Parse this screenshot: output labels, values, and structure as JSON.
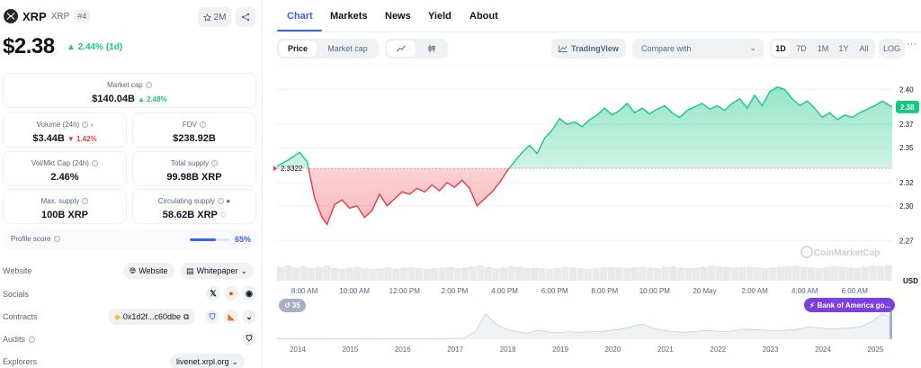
{
  "coin": {
    "name": "XRP",
    "symbol": "XRP",
    "rank": "#4",
    "watchlist_count": "2M",
    "price": "$2.38",
    "price_change": "2.44% (1d)"
  },
  "stats": {
    "market_cap": {
      "label": "Market cap",
      "value": "$140.04B",
      "change": "2.48%"
    },
    "volume": {
      "label": "Volume (24h)",
      "value": "$3.44B",
      "change": "1.42%"
    },
    "fdv": {
      "label": "FDV",
      "value": "$238.92B"
    },
    "vol_mkt_cap": {
      "label": "Vol/Mkt Cap (24h)",
      "value": "2.46%"
    },
    "total_supply": {
      "label": "Total supply",
      "value": "99.98B XRP"
    },
    "max_supply": {
      "label": "Max. supply",
      "value": "100B XRP"
    },
    "circulating_supply": {
      "label": "Circulating supply",
      "value": "58.62B XRP"
    }
  },
  "profile": {
    "label": "Profile score",
    "value": "65%",
    "fraction": 0.65
  },
  "links": {
    "website_label": "Website",
    "website_btn": "Website",
    "whitepaper_btn": "Whitepaper",
    "socials_label": "Socials",
    "contracts_label": "Contracts",
    "contract_address": "0x1d2f...c60dbe",
    "audits_label": "Audits",
    "explorers_label": "Explorers",
    "explorer_link": "livenet.xrpl.org"
  },
  "tabs": [
    "Chart",
    "Markets",
    "News",
    "Yield",
    "About"
  ],
  "chart_controls": {
    "price_btn": "Price",
    "market_cap_btn": "Market cap",
    "tradingview": "TradingView",
    "compare_placeholder": "Compare with",
    "ranges": [
      "1D",
      "7D",
      "1M",
      "1Y",
      "All"
    ],
    "selected_range": "1D",
    "log": "LOG",
    "more": "···"
  },
  "badges": {
    "events_count": "35",
    "news_badge": "Bank of America go..."
  },
  "colors": {
    "accent": "#3861fb",
    "up": "#16c784",
    "down": "#ea3943",
    "news": "#7b3fe4"
  },
  "chart_data": {
    "type": "area",
    "currency": "USD",
    "open_price": 2.3322,
    "open_label": "2.3322",
    "current_label": "2.38",
    "y_ticks": [
      "2.40",
      "2.37",
      "2.35",
      "2.32",
      "2.30",
      "2.27"
    ],
    "y_tick_values": [
      2.4,
      2.37,
      2.35,
      2.32,
      2.3,
      2.27
    ],
    "ylim": [
      2.255,
      2.415
    ],
    "x_ticks": [
      "8:00 AM",
      "10:00 AM",
      "12:00 PM",
      "2:00 PM",
      "4:00 PM",
      "6:00 PM",
      "8:00 PM",
      "10:00 PM",
      "20 May",
      "2:00 AM",
      "4:00 AM",
      "6:00 AM"
    ],
    "x_tick_hours": [
      1.1,
      3.1,
      5.1,
      7.1,
      9.1,
      11.1,
      13.1,
      15.1,
      17.1,
      19.1,
      21.1,
      23.1
    ],
    "x_range_hours": [
      0,
      24.6
    ],
    "watermark": "CoinMarketCap",
    "series": [
      {
        "hours": [
          0,
          0.5,
          0.9,
          1.2,
          1.5,
          1.8,
          2.0,
          2.3,
          2.6,
          2.9,
          3.2,
          3.5,
          3.8,
          4.1,
          4.4,
          4.7,
          5.0,
          5.3,
          5.6,
          5.9,
          6.2,
          6.5,
          6.8,
          7.1,
          7.4,
          7.7,
          8.0,
          8.3,
          8.6,
          8.9,
          9.2,
          9.5,
          9.8,
          10.1,
          10.4,
          10.7,
          11.0,
          11.3,
          11.6,
          11.9,
          12.2,
          12.5,
          12.8,
          13.1,
          13.4,
          13.7,
          14.0,
          14.3,
          14.6,
          14.9,
          15.2,
          15.5,
          15.8,
          16.1,
          16.4,
          16.7,
          17.0,
          17.3,
          17.6,
          17.9,
          18.2,
          18.5,
          18.8,
          19.1,
          19.4,
          19.7,
          20.0,
          20.3,
          20.6,
          20.9,
          21.2,
          21.5,
          21.8,
          22.1,
          22.4,
          22.7,
          23.0,
          23.3,
          23.6,
          23.9,
          24.2,
          24.6
        ],
        "values": [
          2.334,
          2.34,
          2.346,
          2.338,
          2.307,
          2.29,
          2.284,
          2.301,
          2.305,
          2.298,
          2.3,
          2.29,
          2.296,
          2.31,
          2.3,
          2.306,
          2.312,
          2.31,
          2.315,
          2.312,
          2.318,
          2.313,
          2.32,
          2.316,
          2.322,
          2.315,
          2.3,
          2.306,
          2.312,
          2.32,
          2.33,
          2.338,
          2.346,
          2.352,
          2.345,
          2.358,
          2.365,
          2.375,
          2.37,
          2.372,
          2.368,
          2.374,
          2.378,
          2.384,
          2.378,
          2.382,
          2.388,
          2.38,
          2.384,
          2.379,
          2.383,
          2.386,
          2.38,
          2.376,
          2.382,
          2.385,
          2.388,
          2.383,
          2.386,
          2.382,
          2.388,
          2.392,
          2.384,
          2.395,
          2.386,
          2.398,
          2.402,
          2.4,
          2.392,
          2.386,
          2.39,
          2.384,
          2.376,
          2.38,
          2.374,
          2.378,
          2.376,
          2.38,
          2.383,
          2.386,
          2.39,
          2.385
        ]
      }
    ],
    "volume_values": [
      0.55,
      0.6,
      0.52,
      0.58,
      0.5,
      0.55,
      0.6,
      0.5,
      0.48,
      0.52,
      0.55,
      0.5,
      0.47,
      0.5,
      0.53,
      0.49,
      0.51,
      0.54,
      0.5,
      0.48,
      0.5,
      0.52,
      0.55,
      0.5,
      0.53,
      0.56,
      0.6,
      0.55,
      0.5,
      0.52,
      0.58,
      0.55,
      0.5,
      0.52,
      0.5,
      0.48,
      0.5,
      0.55,
      0.52,
      0.5,
      0.48,
      0.5,
      0.53,
      0.55,
      0.52,
      0.5,
      0.54,
      0.56,
      0.52,
      0.5,
      0.55,
      0.57,
      0.53,
      0.5,
      0.52,
      0.55,
      0.6,
      0.58,
      0.55,
      0.52,
      0.54,
      0.56,
      0.53,
      0.5,
      0.52,
      0.55,
      0.57,
      0.6,
      0.55,
      0.52,
      0.5,
      0.55,
      0.58,
      0.56,
      0.52,
      0.5,
      0.55,
      0.6,
      0.58,
      0.62
    ],
    "overview": {
      "years": [
        "2014",
        "2015",
        "2016",
        "2017",
        "2018",
        "2019",
        "2020",
        "2021",
        "2022",
        "2023",
        "2024",
        "2025"
      ],
      "values": [
        0.02,
        0.02,
        0.02,
        0.01,
        0.02,
        0.01,
        0.01,
        0.01,
        0.01,
        0.02,
        0.01,
        0.01,
        0.01,
        0.01,
        0.01,
        0.01,
        0.02,
        0.03,
        0.05,
        0.3,
        1.0,
        0.6,
        0.4,
        0.3,
        0.25,
        0.35,
        0.3,
        0.25,
        0.3,
        0.28,
        0.3,
        0.3,
        0.35,
        0.4,
        0.5,
        0.6,
        0.45,
        0.35,
        0.3,
        0.28,
        0.3,
        0.35,
        0.32,
        0.3,
        0.35,
        0.4,
        0.38,
        0.35,
        0.34,
        0.36,
        0.4,
        0.5,
        0.45,
        0.4,
        0.42,
        0.45,
        0.5,
        0.7,
        1.0,
        0.85
      ]
    }
  }
}
